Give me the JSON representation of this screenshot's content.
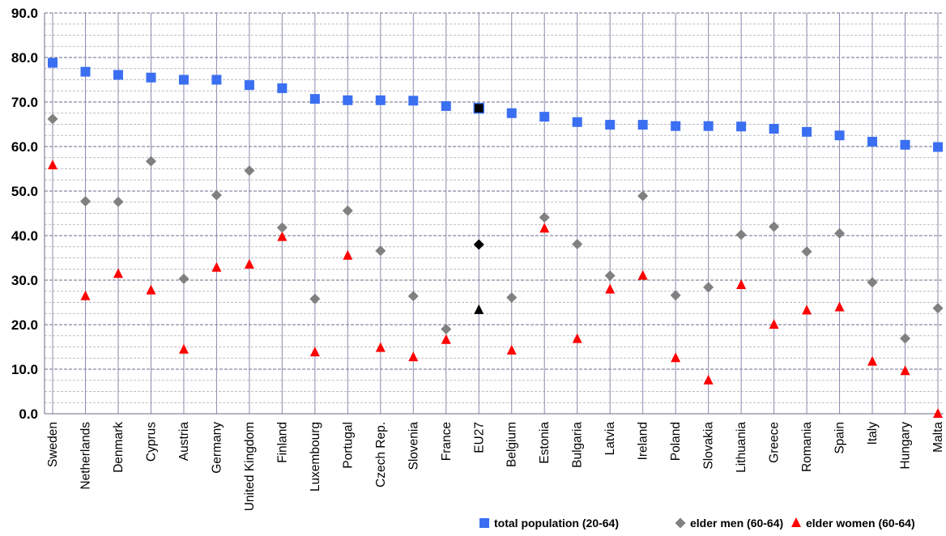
{
  "chart_data": {
    "type": "scatter",
    "title": "",
    "xlabel": "",
    "ylabel": "",
    "ylim": [
      0,
      90
    ],
    "y_ticks": [
      "0.0",
      "10.0",
      "20.0",
      "30.0",
      "40.0",
      "50.0",
      "60.0",
      "70.0",
      "80.0",
      "90.0"
    ],
    "grid": true,
    "legend_position": "bottom-right",
    "categories": [
      "Sweden",
      "Netherlands",
      "Denmark",
      "Cyprus",
      "Austria",
      "Germany",
      "United Kingdom",
      "Finland",
      "Luxembourg",
      "Portugal",
      "Czech Rep.",
      "Slovenia",
      "France",
      "EU27",
      "Belgium",
      "Estonia",
      "Bulgaria",
      "Latvia",
      "Ireland",
      "Poland",
      "Slovakia",
      "Lithuania",
      "Greece",
      "Romania",
      "Spain",
      "Italy",
      "Hungary",
      "Malta"
    ],
    "highlight_category": "EU27",
    "series": [
      {
        "name": "total population (20-64)",
        "marker": "square",
        "color": "#3b6ff2",
        "highlight_color": "#000000",
        "values": [
          78.8,
          76.8,
          76.1,
          75.5,
          75.0,
          75.0,
          73.8,
          73.1,
          70.7,
          70.4,
          70.4,
          70.3,
          69.1,
          68.6,
          67.5,
          66.7,
          65.5,
          64.9,
          64.9,
          64.6,
          64.6,
          64.5,
          64.0,
          63.3,
          62.5,
          61.1,
          60.4,
          59.9
        ]
      },
      {
        "name": "elder men (60-64)",
        "marker": "diamond",
        "color": "#808080",
        "highlight_color": "#000000",
        "values": [
          66.2,
          47.7,
          47.6,
          56.7,
          30.3,
          49.1,
          54.6,
          41.8,
          25.8,
          45.6,
          36.6,
          26.4,
          19.0,
          38.0,
          26.1,
          44.1,
          38.1,
          31.0,
          48.9,
          26.6,
          28.4,
          40.2,
          42.0,
          36.4,
          40.5,
          29.5,
          16.9,
          23.7
        ]
      },
      {
        "name": "elder women (60-64)",
        "marker": "triangle",
        "color": "#ff0000",
        "highlight_color": "#000000",
        "values": [
          55.8,
          26.4,
          31.4,
          27.7,
          14.4,
          32.8,
          33.5,
          39.7,
          13.8,
          35.5,
          14.8,
          12.7,
          16.6,
          23.3,
          14.2,
          41.6,
          16.8,
          27.9,
          31.0,
          12.5,
          7.5,
          28.9,
          20.0,
          23.2,
          23.9,
          11.7,
          9.6,
          0.0
        ]
      }
    ]
  }
}
